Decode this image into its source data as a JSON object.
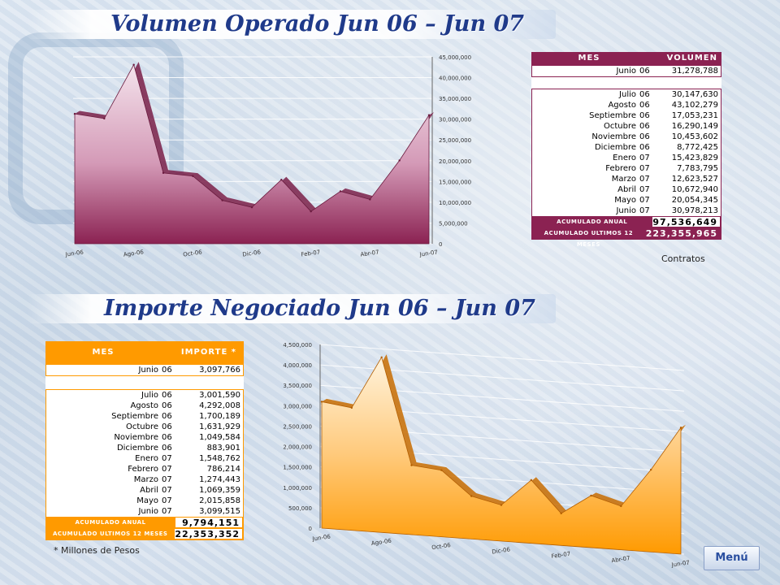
{
  "titles": {
    "volumen": "Volumen Operado  Jun 06 – Jun 07",
    "importe": "Importe Negociado  Jun 06 – Jun 07"
  },
  "colors": {
    "title_text": "#1f3a8a",
    "volumen_accent": "#8b2252",
    "importe_accent": "#ff9a00",
    "volumen_area_top": "#e8c9d9",
    "importe_area_top": "#ffe0a8"
  },
  "volumen_table": {
    "header_mes": "MES",
    "header_value": "VOLUMEN",
    "first_row": {
      "mes": "Junio",
      "yr": "06",
      "value": "31,278,788"
    },
    "rows": [
      {
        "mes": "Julio",
        "yr": "06",
        "value": "30,147,630"
      },
      {
        "mes": "Agosto",
        "yr": "06",
        "value": "43,102,279"
      },
      {
        "mes": "Septiembre",
        "yr": "06",
        "value": "17,053,231"
      },
      {
        "mes": "Octubre",
        "yr": "06",
        "value": "16,290,149"
      },
      {
        "mes": "Noviembre",
        "yr": "06",
        "value": "10,453,602"
      },
      {
        "mes": "Diciembre",
        "yr": "06",
        "value": "8,772,425"
      },
      {
        "mes": "Enero",
        "yr": "07",
        "value": "15,423,829"
      },
      {
        "mes": "Febrero",
        "yr": "07",
        "value": "7,783,795"
      },
      {
        "mes": "Marzo",
        "yr": "07",
        "value": "12,623,527"
      },
      {
        "mes": "Abril",
        "yr": "07",
        "value": "10,672,940"
      },
      {
        "mes": "Mayo",
        "yr": "07",
        "value": "20,054,345"
      },
      {
        "mes": "Junio",
        "yr": "07",
        "value": "30,978,213"
      }
    ],
    "acumulado_anual_label": "ACUMULADO ANUAL",
    "acumulado_anual_value": "97,536,649",
    "acumulado_12_label": "ACUMULADO ULTIMOS 12 MESES",
    "acumulado_12_value": "223,355,965",
    "note": "Contratos"
  },
  "importe_table": {
    "header_mes": "MES",
    "header_value": "IMPORTE *",
    "first_row": {
      "mes": "Junio",
      "yr": "06",
      "value": "3,097,766"
    },
    "rows": [
      {
        "mes": "Julio",
        "yr": "06",
        "value": "3,001,590"
      },
      {
        "mes": "Agosto",
        "yr": "06",
        "value": "4,292,008"
      },
      {
        "mes": "Septiembre",
        "yr": "06",
        "value": "1,700,189"
      },
      {
        "mes": "Octubre",
        "yr": "06",
        "value": "1,631,929"
      },
      {
        "mes": "Noviembre",
        "yr": "06",
        "value": "1,049,584"
      },
      {
        "mes": "Diciembre",
        "yr": "06",
        "value": "883,901"
      },
      {
        "mes": "Enero",
        "yr": "07",
        "value": "1,548,762"
      },
      {
        "mes": "Febrero",
        "yr": "07",
        "value": "786,214"
      },
      {
        "mes": "Marzo",
        "yr": "07",
        "value": "1,274,443"
      },
      {
        "mes": "Abril",
        "yr": "07",
        "value": "1,069,359"
      },
      {
        "mes": "Mayo",
        "yr": "07",
        "value": "2,015,858"
      },
      {
        "mes": "Junio",
        "yr": "07",
        "value": "3,099,515"
      }
    ],
    "acumulado_anual_label": "ACUMULADO ANUAL",
    "acumulado_anual_value": "9,794,151",
    "acumulado_12_label": "ACUMULADO ULTIMOS 12 MESES",
    "acumulado_12_value": "22,353,352",
    "note": "* Millones de Pesos"
  },
  "menu_label": "Menú",
  "chart_data": [
    {
      "type": "area",
      "title": "Volumen Operado  Jun 06 – Jun 07",
      "x": [
        "Jun-06",
        "Jul-06",
        "Ago-06",
        "Sep-06",
        "Oct-06",
        "Nov-06",
        "Dic-06",
        "Ene-07",
        "Feb-07",
        "Mar-07",
        "Abr-07",
        "May-07",
        "Jun-07"
      ],
      "x_tick_labels": [
        "Jun-06",
        "Ago-06",
        "Oct-06",
        "Dic-06",
        "Feb-07",
        "Abr-07",
        "Jun-07"
      ],
      "series": [
        {
          "values": [
            31278788,
            30147630,
            43102279,
            17053231,
            16290149,
            10453602,
            8772425,
            15423829,
            7783795,
            12623527,
            10672940,
            20054345,
            30978213
          ]
        }
      ],
      "ylim": [
        0,
        45000000
      ],
      "y_ticks": [
        "0",
        "5,000,000",
        "10,000,000",
        "15,000,000",
        "20,000,000",
        "25,000,000",
        "30,000,000",
        "35,000,000",
        "40,000,000",
        "45,000,000"
      ],
      "y_axis_side": "right",
      "grid": true
    },
    {
      "type": "area",
      "title": "Importe Negociado  Jun 06 – Jun 07",
      "x": [
        "Jun-06",
        "Jul-06",
        "Ago-06",
        "Sep-06",
        "Oct-06",
        "Nov-06",
        "Dic-06",
        "Ene-07",
        "Feb-07",
        "Mar-07",
        "Abr-07",
        "May-07",
        "Jun-07"
      ],
      "x_tick_labels": [
        "Jun-06",
        "Ago-06",
        "Oct-06",
        "Dic-06",
        "Feb-07",
        "Abr-07",
        "Jun-07"
      ],
      "series": [
        {
          "values": [
            3097766,
            3001590,
            4292008,
            1700189,
            1631929,
            1049584,
            883901,
            1548762,
            786214,
            1274443,
            1069359,
            2015858,
            3099515
          ]
        }
      ],
      "ylim": [
        0,
        4500000
      ],
      "y_ticks": [
        "0",
        "500,000",
        "1,000,000",
        "1,500,000",
        "2,000,000",
        "2,500,000",
        "3,000,000",
        "3,500,000",
        "4,000,000",
        "4,500,000"
      ],
      "y_axis_side": "left",
      "grid": true
    }
  ]
}
